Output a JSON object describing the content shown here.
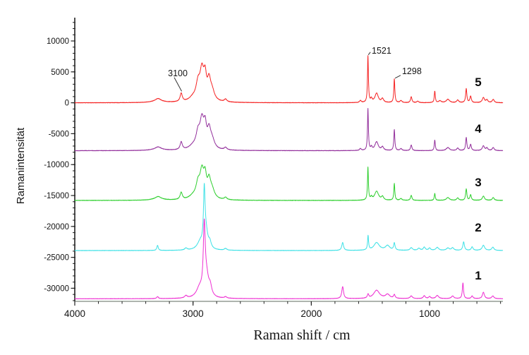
{
  "figure": {
    "background": "#ffffff"
  },
  "chart_data": {
    "type": "line",
    "title": "",
    "xlabel": "Raman shift / cm",
    "ylabel": "Ramanintensität",
    "legend": "none",
    "grid": false,
    "x_axis": {
      "min": 380,
      "max": 4000,
      "reversed": true,
      "major_ticks": [
        4000,
        3000,
        2000,
        1000
      ],
      "minor_step": 200,
      "line_color": "#a3aaa3",
      "tick_color": "#222222"
    },
    "y_axis": {
      "min": -32120,
      "max": 13770,
      "major_ticks": [
        10000,
        5000,
        0,
        -5000,
        -10000,
        -15000,
        -20000,
        -25000,
        -30000
      ],
      "minor_step": 1000,
      "line_color": "#222222",
      "tick_color": "#222222"
    },
    "series": [
      {
        "name": "1",
        "color": "#ee30d2",
        "baseline": -31700,
        "noise": 25,
        "seed": 55,
        "peaks": [
          [
            3300,
            330,
            8
          ],
          [
            3060,
            380,
            13
          ],
          [
            2945,
            1500,
            32
          ],
          [
            2905,
            10800,
            10
          ],
          [
            2885,
            2800,
            20
          ],
          [
            2855,
            1500,
            16
          ],
          [
            2725,
            240,
            12
          ],
          [
            1735,
            1950,
            9
          ],
          [
            1520,
            620,
            7
          ],
          [
            1448,
            1350,
            30
          ],
          [
            1355,
            650,
            22
          ],
          [
            1298,
            580,
            8
          ],
          [
            1155,
            430,
            12
          ],
          [
            1045,
            470,
            10
          ],
          [
            1000,
            330,
            10
          ],
          [
            935,
            520,
            14
          ],
          [
            805,
            430,
            13
          ],
          [
            718,
            2550,
            6
          ],
          [
            640,
            430,
            9
          ],
          [
            545,
            1050,
            10
          ],
          [
            465,
            430,
            11
          ]
        ]
      },
      {
        "name": "2",
        "color": "#3fe1e6",
        "baseline": -23900,
        "noise": 25,
        "seed": 44,
        "peaks": [
          [
            3300,
            820,
            7
          ],
          [
            3060,
            330,
            12
          ],
          [
            2940,
            1200,
            30
          ],
          [
            2905,
            8800,
            8
          ],
          [
            2890,
            2500,
            18
          ],
          [
            2858,
            1000,
            14
          ],
          [
            2725,
            280,
            12
          ],
          [
            1735,
            1280,
            9
          ],
          [
            1520,
            2300,
            5
          ],
          [
            1448,
            1250,
            28
          ],
          [
            1355,
            750,
            22
          ],
          [
            1298,
            1150,
            7
          ],
          [
            1155,
            430,
            12
          ],
          [
            1090,
            330,
            12
          ],
          [
            1045,
            520,
            10
          ],
          [
            1000,
            380,
            10
          ],
          [
            935,
            480,
            14
          ],
          [
            845,
            380,
            14
          ],
          [
            805,
            420,
            12
          ],
          [
            712,
            1380,
            8
          ],
          [
            640,
            580,
            9
          ],
          [
            545,
            830,
            13
          ],
          [
            465,
            520,
            11
          ]
        ]
      },
      {
        "name": "3",
        "color": "#2fcf2f",
        "baseline": -15800,
        "noise": 30,
        "seed": 33,
        "peaks": [
          [
            3300,
            200,
            60
          ],
          [
            3295,
            400,
            28
          ],
          [
            3100,
            1150,
            11
          ],
          [
            3000,
            500,
            40
          ],
          [
            2958,
            2200,
            20
          ],
          [
            2925,
            4100,
            20
          ],
          [
            2898,
            3000,
            14
          ],
          [
            2865,
            2500,
            16
          ],
          [
            2840,
            1450,
            25
          ],
          [
            2725,
            380,
            13
          ],
          [
            1521,
            5300,
            4.5
          ],
          [
            1492,
            450,
            8
          ],
          [
            1448,
            1450,
            20
          ],
          [
            1398,
            550,
            11
          ],
          [
            1298,
            2700,
            5
          ],
          [
            1242,
            280,
            10
          ],
          [
            1155,
            800,
            7
          ],
          [
            956,
            1100,
            5
          ],
          [
            845,
            450,
            16
          ],
          [
            762,
            380,
            10
          ],
          [
            690,
            1850,
            6
          ],
          [
            653,
            900,
            7
          ],
          [
            545,
            700,
            11
          ],
          [
            462,
            450,
            10
          ]
        ]
      },
      {
        "name": "4",
        "color": "#93309c",
        "baseline": -7750,
        "noise": 30,
        "seed": 22,
        "peaks": [
          [
            3300,
            200,
            60
          ],
          [
            3295,
            380,
            28
          ],
          [
            3100,
            1250,
            11
          ],
          [
            3000,
            550,
            40
          ],
          [
            2958,
            2300,
            20
          ],
          [
            2925,
            4300,
            20
          ],
          [
            2898,
            3100,
            14
          ],
          [
            2865,
            2600,
            16
          ],
          [
            2840,
            1500,
            25
          ],
          [
            2725,
            400,
            13
          ],
          [
            1585,
            300,
            9
          ],
          [
            1521,
            6700,
            4.5
          ],
          [
            1492,
            500,
            8
          ],
          [
            1448,
            1400,
            17
          ],
          [
            1398,
            550,
            11
          ],
          [
            1298,
            3400,
            5
          ],
          [
            1242,
            300,
            10
          ],
          [
            1155,
            900,
            7
          ],
          [
            956,
            1700,
            5
          ],
          [
            845,
            500,
            16
          ],
          [
            762,
            400,
            10
          ],
          [
            690,
            2100,
            6
          ],
          [
            653,
            1000,
            7
          ],
          [
            545,
            760,
            11
          ],
          [
            515,
            420,
            9
          ],
          [
            462,
            480,
            10
          ]
        ]
      },
      {
        "name": "5",
        "color": "#f52323",
        "baseline": 0,
        "noise": 30,
        "seed": 11,
        "peaks": [
          [
            3300,
            220,
            60
          ],
          [
            3295,
            420,
            28
          ],
          [
            3100,
            1350,
            11
          ],
          [
            3000,
            600,
            40
          ],
          [
            2958,
            2500,
            20
          ],
          [
            2925,
            4600,
            20
          ],
          [
            2898,
            3300,
            14
          ],
          [
            2865,
            2800,
            16
          ],
          [
            2840,
            1600,
            25
          ],
          [
            2725,
            430,
            13
          ],
          [
            1585,
            320,
            9
          ],
          [
            1521,
            7500,
            4.5
          ],
          [
            1492,
            550,
            8
          ],
          [
            1448,
            1500,
            17
          ],
          [
            1398,
            600,
            11
          ],
          [
            1298,
            3850,
            5
          ],
          [
            1242,
            330,
            10
          ],
          [
            1155,
            950,
            7
          ],
          [
            1100,
            250,
            9
          ],
          [
            956,
            1850,
            5
          ],
          [
            912,
            300,
            12
          ],
          [
            845,
            550,
            16
          ],
          [
            762,
            430,
            10
          ],
          [
            690,
            2250,
            6
          ],
          [
            653,
            1050,
            7
          ],
          [
            545,
            820,
            11
          ],
          [
            515,
            450,
            9
          ],
          [
            462,
            520,
            10
          ]
        ]
      }
    ],
    "annotations": [
      {
        "text": "3100",
        "text_wv": 3129,
        "text_val": 4750,
        "anchor": "middle",
        "line": [
          [
            3159,
            4100
          ],
          [
            3096,
            1850
          ]
        ]
      },
      {
        "text": "1521",
        "text_wv": 1489,
        "text_val": 8400,
        "anchor": "start",
        "line": [
          [
            1500,
            8200
          ],
          [
            1518,
            7750
          ]
        ]
      },
      {
        "text": "1298",
        "text_wv": 1233,
        "text_val": 5100,
        "anchor": "start",
        "line": [
          [
            1245,
            4450
          ],
          [
            1292,
            3980
          ]
        ]
      }
    ],
    "sample_labels": [
      {
        "text": "5",
        "wv": 589,
        "val": 3400
      },
      {
        "text": "4",
        "wv": 589,
        "val": -4150
      },
      {
        "text": "3",
        "wv": 589,
        "val": -12830
      },
      {
        "text": "2",
        "wv": 589,
        "val": -20140
      },
      {
        "text": "1",
        "wv": 589,
        "val": -27900
      }
    ]
  }
}
